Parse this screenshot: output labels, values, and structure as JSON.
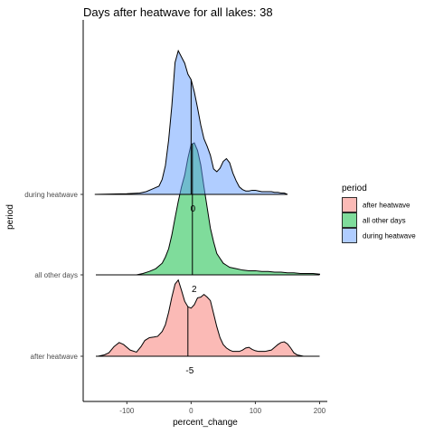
{
  "chart_data": {
    "type": "area",
    "subtype": "ridgeline-density",
    "title": "Days after heatwave for all lakes: 38",
    "xlabel": "percent_change",
    "ylabel": "period",
    "xlim": [
      -168,
      212
    ],
    "x_ticks": [
      -100,
      0,
      100,
      200
    ],
    "x_tick_labels": [
      "-100",
      "0",
      "100",
      "200"
    ],
    "grid": false,
    "legend": {
      "title": "period",
      "position": "right",
      "entries": [
        "after heatwave",
        "all other days",
        "during heatwave"
      ]
    },
    "series": [
      {
        "name": "after heatwave",
        "color": "#F8766D",
        "x": [
          -145,
          -135,
          -128,
          -120,
          -112,
          -105,
          -95,
          -85,
          -78,
          -72,
          -65,
          -58,
          -52,
          -45,
          -40,
          -35,
          -30,
          -25,
          -20,
          -15,
          -10,
          -5,
          0,
          5,
          10,
          15,
          20,
          25,
          30,
          35,
          40,
          45,
          50,
          55,
          60,
          65,
          70,
          75,
          80,
          85,
          90,
          95,
          100,
          105,
          110,
          115,
          120,
          125,
          130,
          135,
          140,
          145,
          150,
          155,
          160,
          165,
          170,
          175,
          180,
          185,
          190,
          195,
          200
        ],
        "y": [
          0,
          0.02,
          0.05,
          0.14,
          0.2,
          0.17,
          0.09,
          0.06,
          0.14,
          0.23,
          0.27,
          0.28,
          0.29,
          0.36,
          0.46,
          0.64,
          0.86,
          1.05,
          1.11,
          0.96,
          0.8,
          0.72,
          0.7,
          0.75,
          0.85,
          0.86,
          0.9,
          0.86,
          0.81,
          0.62,
          0.43,
          0.27,
          0.17,
          0.12,
          0.09,
          0.07,
          0.07,
          0.07,
          0.09,
          0.12,
          0.13,
          0.1,
          0.08,
          0.07,
          0.07,
          0.07,
          0.08,
          0.09,
          0.13,
          0.17,
          0.2,
          0.21,
          0.18,
          0.12,
          0.05,
          0.02,
          0.01,
          0,
          0,
          0,
          0,
          0,
          0
        ]
      },
      {
        "name": "all other days",
        "color": "#00BA38",
        "x": [
          -85,
          -75,
          -65,
          -55,
          -45,
          -40,
          -35,
          -30,
          -25,
          -20,
          -15,
          -10,
          -5,
          0,
          5,
          10,
          15,
          20,
          25,
          30,
          35,
          40,
          45,
          50,
          55,
          60,
          65,
          70,
          80,
          90,
          100,
          110,
          120,
          130,
          140,
          150,
          160,
          170,
          180,
          190,
          200
        ],
        "y": [
          0,
          0.02,
          0.05,
          0.09,
          0.17,
          0.26,
          0.38,
          0.58,
          0.83,
          1.07,
          1.28,
          1.45,
          1.7,
          1.9,
          1.92,
          1.81,
          1.6,
          1.28,
          0.98,
          0.68,
          0.48,
          0.31,
          0.24,
          0.17,
          0.14,
          0.11,
          0.1,
          0.09,
          0.07,
          0.06,
          0.06,
          0.05,
          0.05,
          0.04,
          0.04,
          0.03,
          0.03,
          0.02,
          0.02,
          0.02,
          0.01
        ]
      },
      {
        "name": "during heatwave",
        "color": "#619CFF",
        "x": [
          -150,
          -100,
          -80,
          -70,
          -60,
          -50,
          -45,
          -40,
          -35,
          -30,
          -25,
          -20,
          -15,
          -10,
          -5,
          0,
          5,
          10,
          15,
          20,
          25,
          30,
          35,
          40,
          45,
          50,
          55,
          60,
          65,
          70,
          75,
          80,
          85,
          90,
          95,
          100,
          105,
          110,
          115,
          120,
          125,
          130,
          135,
          140,
          145,
          150
        ],
        "y": [
          0,
          0.01,
          0.02,
          0.04,
          0.08,
          0.12,
          0.22,
          0.42,
          0.79,
          1.29,
          1.92,
          2.09,
          2.0,
          1.91,
          1.75,
          1.67,
          1.49,
          1.26,
          1.01,
          0.81,
          0.7,
          0.57,
          0.37,
          0.33,
          0.38,
          0.48,
          0.52,
          0.46,
          0.31,
          0.2,
          0.11,
          0.07,
          0.05,
          0.05,
          0.06,
          0.06,
          0.05,
          0.04,
          0.04,
          0.04,
          0.04,
          0.03,
          0.03,
          0.02,
          0.02,
          0
        ]
      }
    ],
    "median_annotations": [
      {
        "series": "during heatwave",
        "x": 0,
        "label": "0"
      },
      {
        "series": "all other days",
        "x": 2,
        "label": "2"
      },
      {
        "series": "after heatwave",
        "x": -5,
        "label": "-5"
      }
    ]
  }
}
